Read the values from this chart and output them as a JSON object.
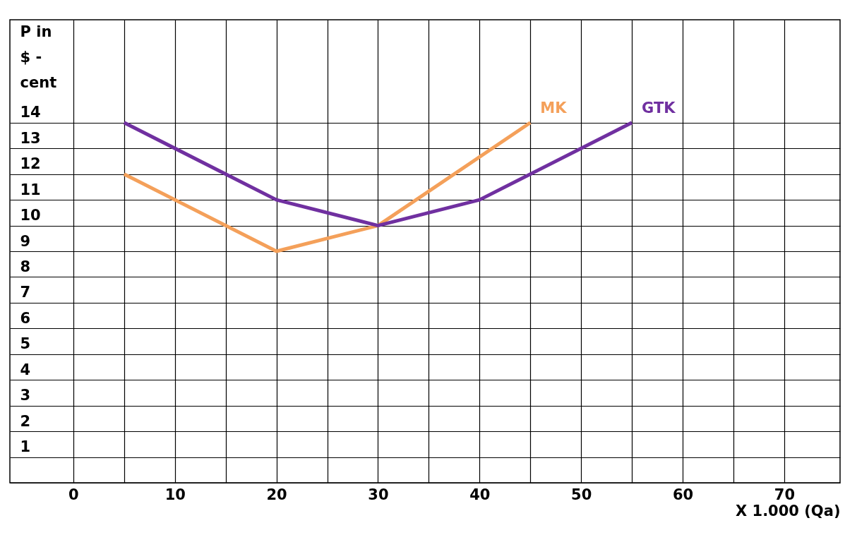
{
  "chart_data": {
    "type": "line",
    "ylabel": "P in $ - cent",
    "xlabel": "X 1.000 (Qa)",
    "xlim": [
      -6.25,
      75.5
    ],
    "ylim": [
      0,
      18
    ],
    "xticks": [
      0,
      {
        "value": 5,
        "label": null
      },
      10,
      {
        "value": 15,
        "label": null
      },
      20,
      {
        "value": 25,
        "label": null
      },
      30,
      {
        "value": 35,
        "label": null
      },
      40,
      {
        "value": 45,
        "label": null
      },
      50,
      {
        "value": 55,
        "label": null
      },
      60,
      {
        "value": 65,
        "label": null
      },
      70
    ],
    "yticks": [
      {
        "value": 0,
        "label": null
      },
      1,
      2,
      3,
      4,
      5,
      6,
      7,
      8,
      9,
      10,
      11,
      12,
      13,
      14
    ],
    "grid": true,
    "legend": false,
    "marker": "none",
    "line_style": "solid",
    "series": [
      {
        "name": "MK",
        "color": "#f4a05a",
        "x": [
          5,
          20,
          30,
          45
        ],
        "values": [
          12,
          9,
          10,
          14
        ]
      },
      {
        "name": "GTK",
        "color": "#7030a0",
        "x": [
          5,
          20,
          30,
          40,
          55
        ],
        "values": [
          14,
          11,
          10,
          11,
          14
        ]
      }
    ]
  }
}
